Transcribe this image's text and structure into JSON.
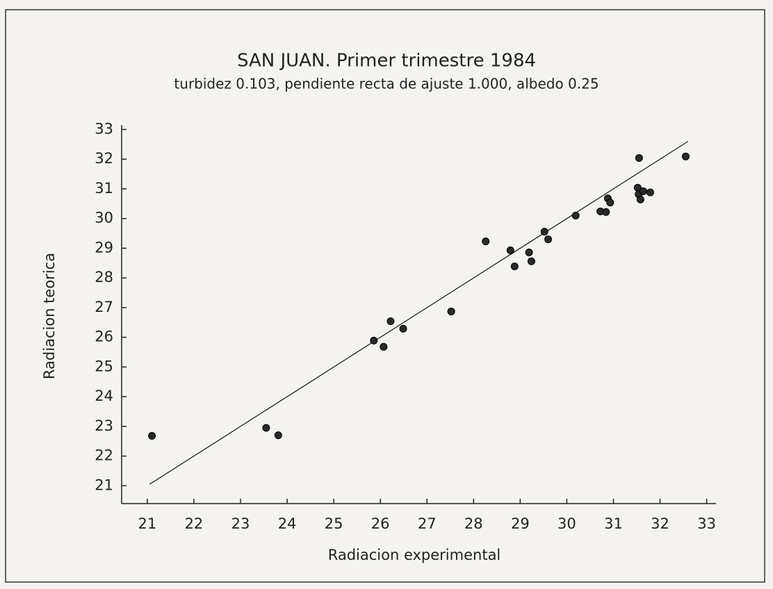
{
  "chart_data": {
    "type": "scatter",
    "title": "SAN JUAN. Primer trimestre 1984",
    "subtitle": "turbidez 0.103, pendiente recta de ajuste 1.000, albedo 0.25",
    "x_label": "Radiacion experimental",
    "y_label": "Radiacion teorica",
    "color": "#2a2a2a",
    "x": [
      21.1,
      23.55,
      23.81,
      25.86,
      26.07,
      26.22,
      26.49,
      27.52,
      28.26,
      28.79,
      28.88,
      29.19,
      29.24,
      29.52,
      29.6,
      30.19,
      30.72,
      30.84,
      30.88,
      30.93,
      31.52,
      31.54,
      31.58,
      31.64,
      31.79,
      31.55,
      32.55
    ],
    "values": [
      22.68,
      22.95,
      22.7,
      25.89,
      25.68,
      26.54,
      26.29,
      26.87,
      29.23,
      28.93,
      28.39,
      28.86,
      28.56,
      29.56,
      29.3,
      30.1,
      30.24,
      30.22,
      30.68,
      30.54,
      31.04,
      30.82,
      30.64,
      30.92,
      30.88,
      32.04,
      32.09
    ],
    "fit_line": {
      "x": [
        21.05,
        32.6
      ],
      "y": [
        21.05,
        32.6
      ]
    },
    "xlim": [
      20.45,
      33.2
    ],
    "ylim": [
      20.4,
      33.15
    ],
    "xticks": [
      21,
      22,
      23,
      24,
      25,
      26,
      27,
      28,
      29,
      30,
      31,
      32,
      33
    ],
    "yticks": [
      21,
      22,
      23,
      24,
      25,
      26,
      27,
      28,
      29,
      30,
      31,
      32,
      33
    ]
  }
}
